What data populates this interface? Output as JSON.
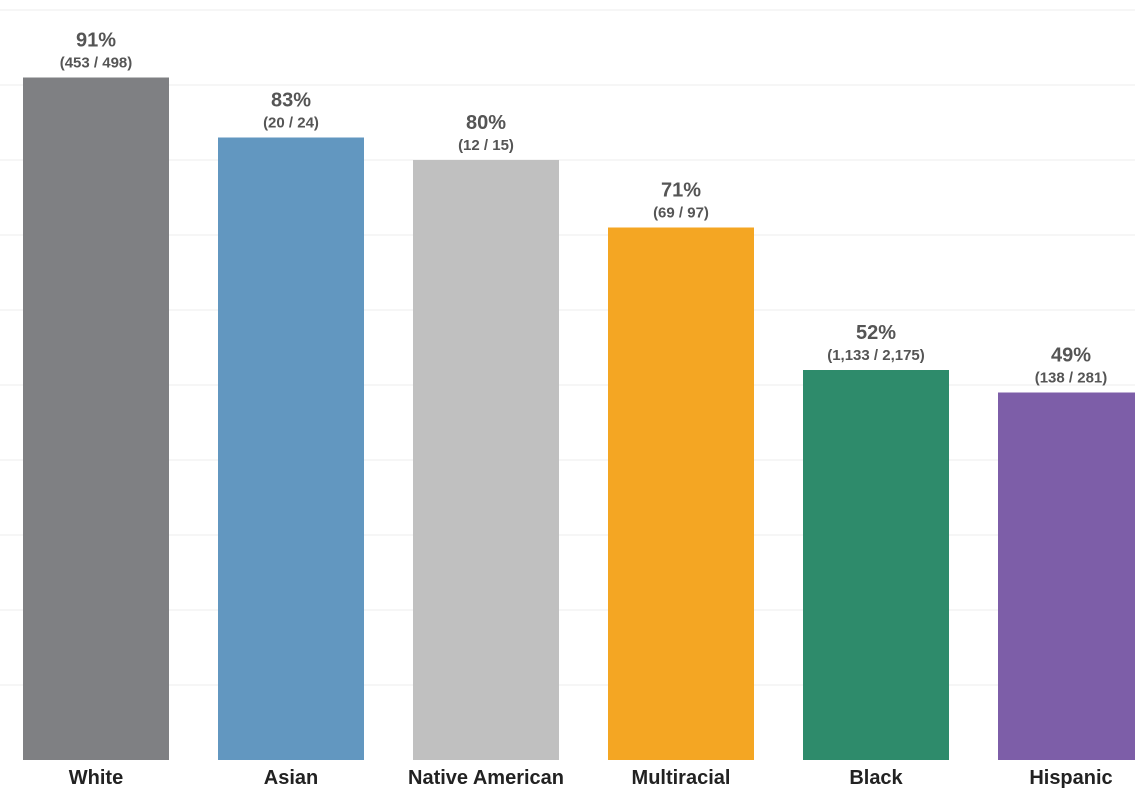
{
  "chart_data": {
    "type": "bar",
    "categories": [
      "White",
      "Asian",
      "Native American",
      "Multiracial",
      "Black",
      "Hispanic"
    ],
    "values": [
      91,
      83,
      80,
      71,
      52,
      49
    ],
    "fractions": [
      "(453 / 498)",
      "(20 / 24)",
      "(12 / 15)",
      "(69 / 97)",
      "(1,133 / 2,175)",
      "(138 / 281)"
    ],
    "value_labels": [
      "91%",
      "83%",
      "80%",
      "71%",
      "52%",
      "49%"
    ],
    "colors": [
      "#7f8083",
      "#6297c0",
      "#c0c0c0",
      "#f4a623",
      "#2e8b6b",
      "#7d5ea8"
    ],
    "ylim": [
      0,
      100
    ],
    "grid": true,
    "gridline_step": 10,
    "title": "",
    "xlabel": "",
    "ylabel": ""
  }
}
